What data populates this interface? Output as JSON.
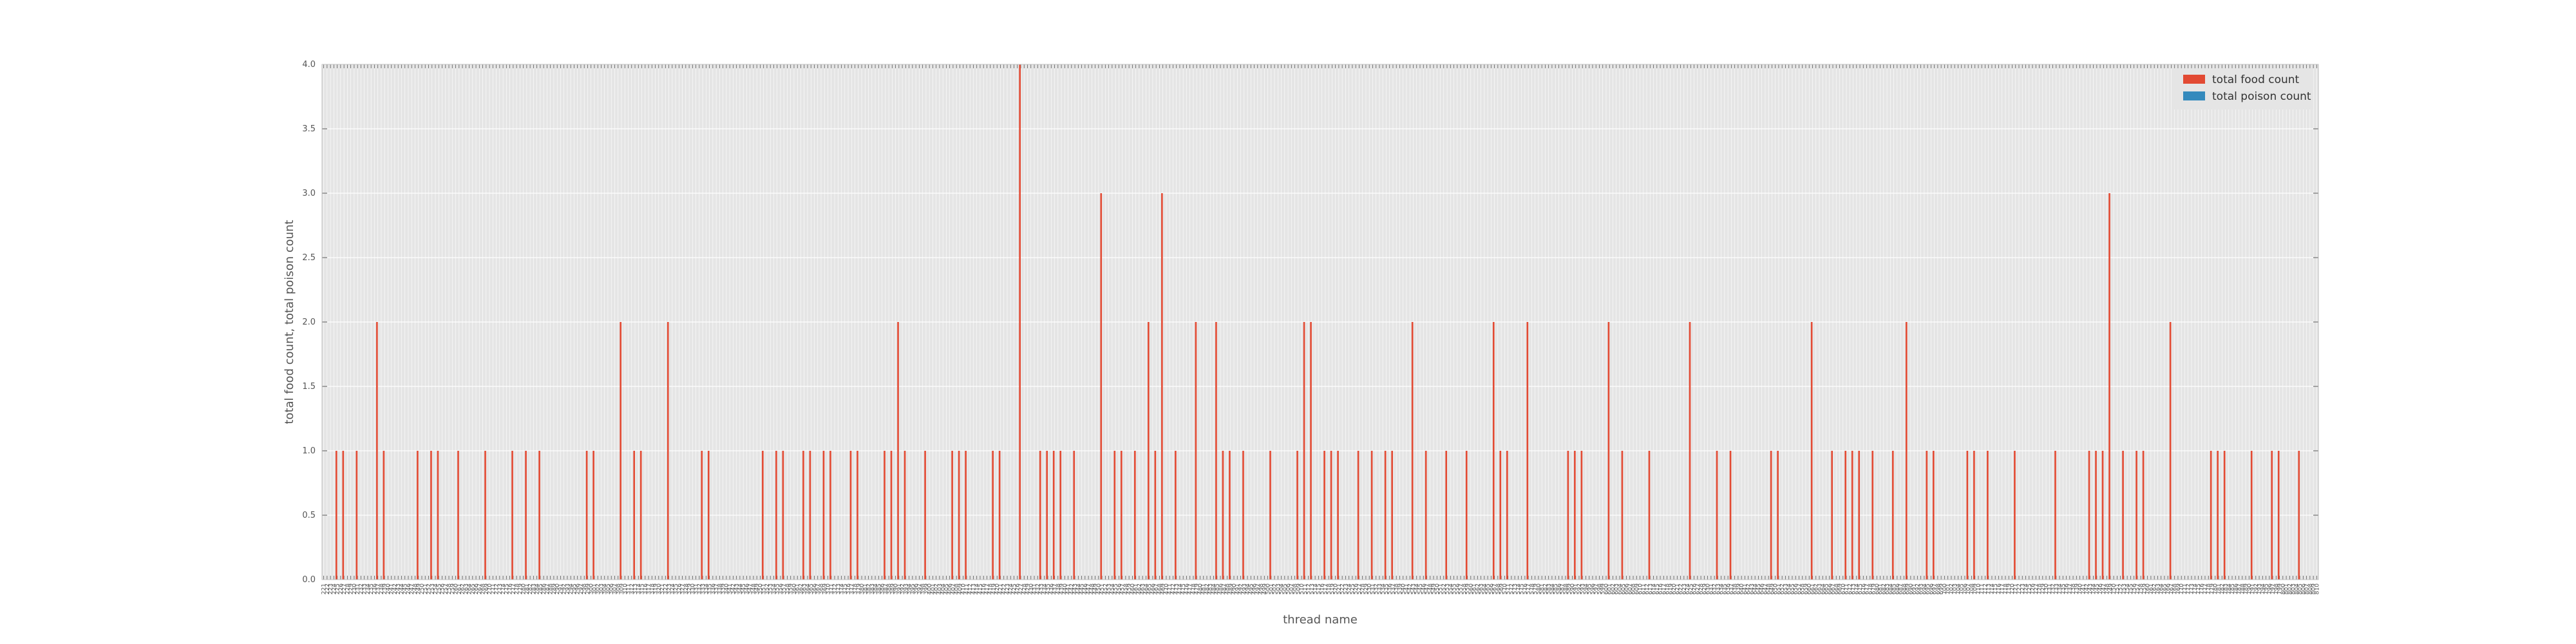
{
  "chart_data": {
    "type": "bar",
    "xlabel": "thread name",
    "ylabel": "total food count, total poison count",
    "ylim": [
      0,
      4.0
    ],
    "yticks": [
      "0.0",
      "0.5",
      "1.0",
      "1.5",
      "2.0",
      "2.5",
      "3.0",
      "3.5",
      "4.0"
    ],
    "grid": true,
    "legend_position": "top-right",
    "series": [
      {
        "name": "total food count",
        "color": "#e24a33"
      },
      {
        "name": "total poison count",
        "color": "#348abd"
      }
    ],
    "x_range": [
      221,
      810
    ],
    "food_count": {
      "default": 0,
      "nonzero": {
        "225": 1,
        "227": 1,
        "231": 1,
        "237": 2,
        "239": 1,
        "249": 1,
        "253": 1,
        "255": 1,
        "261": 1,
        "269": 1,
        "277": 1,
        "281": 1,
        "285": 1,
        "299": 1,
        "301": 1,
        "309": 2,
        "313": 1,
        "315": 1,
        "323": 2,
        "333": 1,
        "335": 1,
        "351": 1,
        "355": 1,
        "357": 1,
        "363": 1,
        "365": 1,
        "369": 1,
        "371": 1,
        "377": 1,
        "379": 1,
        "387": 1,
        "389": 1,
        "391": 2,
        "393": 1,
        "399": 1,
        "407": 1,
        "409": 1,
        "411": 1,
        "419": 1,
        "421": 1,
        "427": 4,
        "433": 1,
        "435": 1,
        "437": 1,
        "439": 1,
        "443": 1,
        "451": 3,
        "455": 1,
        "457": 1,
        "461": 1,
        "465": 2,
        "467": 1,
        "469": 3,
        "473": 1,
        "479": 2,
        "485": 2,
        "487": 1,
        "489": 1,
        "493": 1,
        "501": 1,
        "509": 1,
        "511": 2,
        "513": 2,
        "517": 1,
        "519": 1,
        "521": 1,
        "527": 1,
        "531": 1,
        "535": 1,
        "537": 1,
        "543": 2,
        "547": 1,
        "553": 1,
        "559": 1,
        "567": 2,
        "569": 1,
        "571": 1,
        "577": 2,
        "589": 1,
        "591": 1,
        "593": 1,
        "601": 2,
        "605": 1,
        "613": 1,
        "625": 2,
        "633": 1,
        "637": 1,
        "649": 1,
        "651": 1,
        "661": 2,
        "667": 1,
        "671": 1,
        "673": 1,
        "675": 1,
        "679": 1,
        "685": 1,
        "689": 2,
        "695": 1,
        "697": 1,
        "707": 1,
        "709": 1,
        "713": 1,
        "721": 1,
        "733": 1,
        "743": 1,
        "745": 1,
        "747": 1,
        "749": 3,
        "753": 1,
        "757": 1,
        "759": 1,
        "767": 2,
        "779": 1,
        "781": 1,
        "783": 1,
        "791": 1,
        "797": 1,
        "799": 1,
        "805": 1
      }
    },
    "poison_count": {
      "default": 0
    }
  }
}
